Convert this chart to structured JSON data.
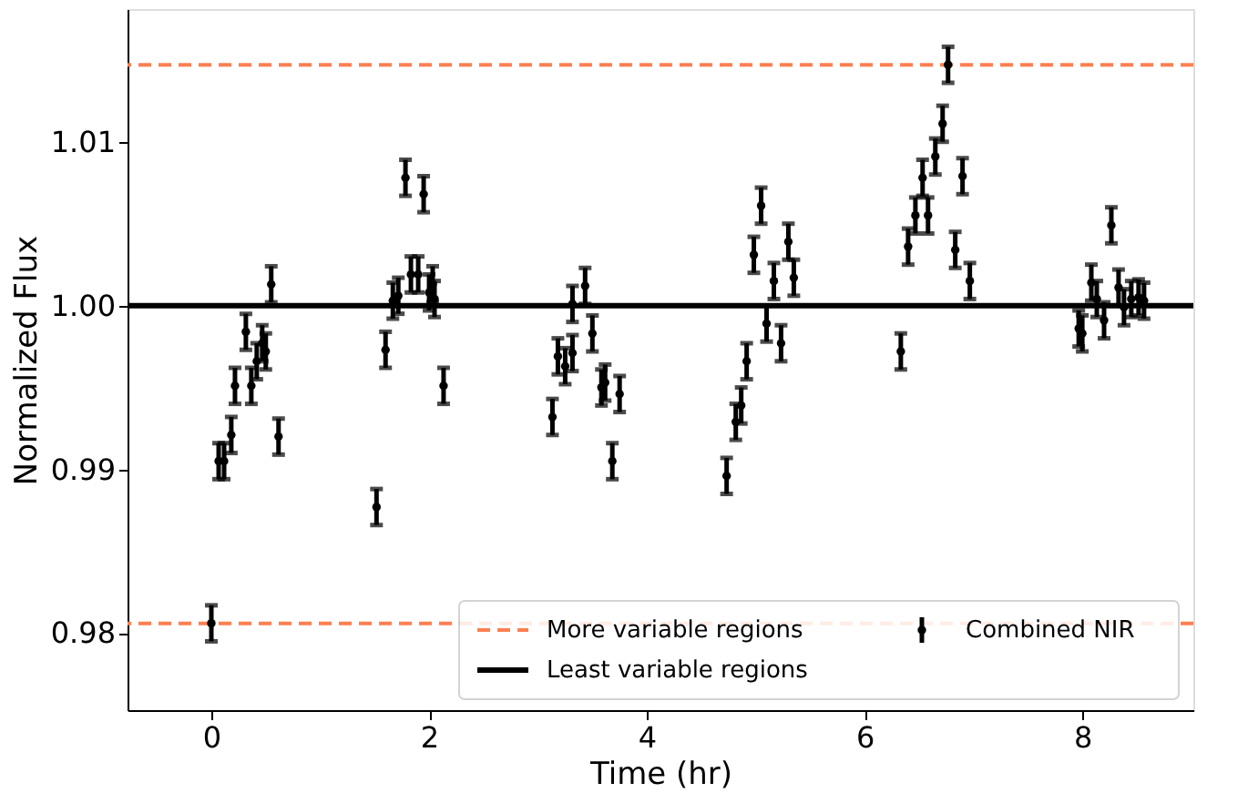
{
  "chart_data": {
    "type": "scatter",
    "xlabel": "Time (hr)",
    "ylabel": "Normalized Flux",
    "xlim": [
      -0.77,
      9.02
    ],
    "xticks": [
      0,
      2,
      4,
      6,
      8
    ],
    "ylim": [
      0.9753,
      1.0181
    ],
    "yticks": [
      {
        "value": 0.98,
        "label": "0.98"
      },
      {
        "value": 0.99,
        "label": "0.99"
      },
      {
        "value": 1.0,
        "label": "1.00"
      },
      {
        "value": 1.01,
        "label": "1.01"
      }
    ],
    "marker": "circle",
    "grid": false,
    "legend": "bottom right",
    "series": [
      {
        "name": "Combined NIR",
        "color": "#000000",
        "x": [
          0.0,
          0.067,
          0.117,
          0.183,
          0.217,
          0.317,
          0.367,
          0.417,
          0.467,
          0.5,
          0.55,
          0.617,
          1.517,
          1.6,
          1.667,
          1.717,
          1.783,
          1.833,
          1.9,
          1.95,
          2.0,
          2.033,
          2.05,
          2.133,
          3.133,
          3.183,
          3.25,
          3.317,
          3.317,
          3.433,
          3.5,
          3.583,
          3.617,
          3.683,
          3.75,
          4.733,
          4.817,
          4.867,
          4.917,
          4.983,
          5.05,
          5.1,
          5.167,
          5.233,
          5.3,
          5.35,
          6.333,
          6.4,
          6.467,
          6.533,
          6.583,
          6.65,
          6.717,
          6.767,
          6.833,
          6.9,
          6.967,
          7.967,
          8.0,
          8.083,
          8.133,
          8.2,
          8.267,
          8.333,
          8.383,
          8.45,
          8.517,
          8.567
        ],
        "values": [
          0.9806,
          0.9905,
          0.9905,
          0.9921,
          0.9951,
          0.9984,
          0.9951,
          0.9966,
          0.9977,
          0.9972,
          1.0013,
          0.992,
          0.9877,
          0.9973,
          1.0003,
          1.0006,
          1.0078,
          1.0019,
          1.0019,
          1.0068,
          1.0008,
          1.0013,
          1.0004,
          0.9951,
          0.9932,
          0.9969,
          0.9963,
          0.9971,
          1.0001,
          1.0012,
          0.9983,
          0.995,
          0.9953,
          0.9905,
          0.9946,
          0.9896,
          0.9929,
          0.9939,
          0.9966,
          1.0031,
          1.0061,
          0.9989,
          1.0015,
          0.9977,
          1.0039,
          1.0017,
          0.9972,
          1.0036,
          1.0055,
          1.0078,
          1.0055,
          1.0091,
          1.0111,
          1.0147,
          1.0034,
          1.0079,
          1.0015,
          0.9986,
          0.9983,
          1.0014,
          1.0004,
          0.9991,
          1.0049,
          1.0011,
          0.9999,
          1.0004,
          1.0005,
          1.0003
        ],
        "errors": [
          0.0011,
          0.0011,
          0.0011,
          0.0011,
          0.0011,
          0.0011,
          0.0011,
          0.0011,
          0.0011,
          0.0011,
          0.0011,
          0.0011,
          0.0011,
          0.0011,
          0.0011,
          0.0011,
          0.0011,
          0.0011,
          0.0011,
          0.0011,
          0.0011,
          0.0011,
          0.0011,
          0.0011,
          0.0011,
          0.0011,
          0.0011,
          0.0011,
          0.0011,
          0.0011,
          0.0011,
          0.0011,
          0.0011,
          0.0011,
          0.0011,
          0.0011,
          0.0011,
          0.0011,
          0.0011,
          0.0011,
          0.0011,
          0.0011,
          0.0011,
          0.0011,
          0.0011,
          0.0011,
          0.0011,
          0.0011,
          0.0011,
          0.0011,
          0.0011,
          0.0011,
          0.0011,
          0.0011,
          0.0011,
          0.0011,
          0.0011,
          0.0011,
          0.0011,
          0.0011,
          0.0011,
          0.0011,
          0.0011,
          0.0011,
          0.0011,
          0.0011,
          0.0011,
          0.0011
        ]
      }
    ],
    "ref_lines": [
      {
        "axis": "y",
        "value": 1.0147,
        "label": "More variable regions",
        "color": "#ff7f50",
        "line_style": "dashed"
      },
      {
        "axis": "y",
        "value": 0.9806,
        "color": "#ff7f50",
        "line_style": "dashed"
      },
      {
        "axis": "y",
        "value": 1.0,
        "label": "Least variable regions",
        "color": "#000000",
        "line_style": "solid"
      }
    ]
  }
}
